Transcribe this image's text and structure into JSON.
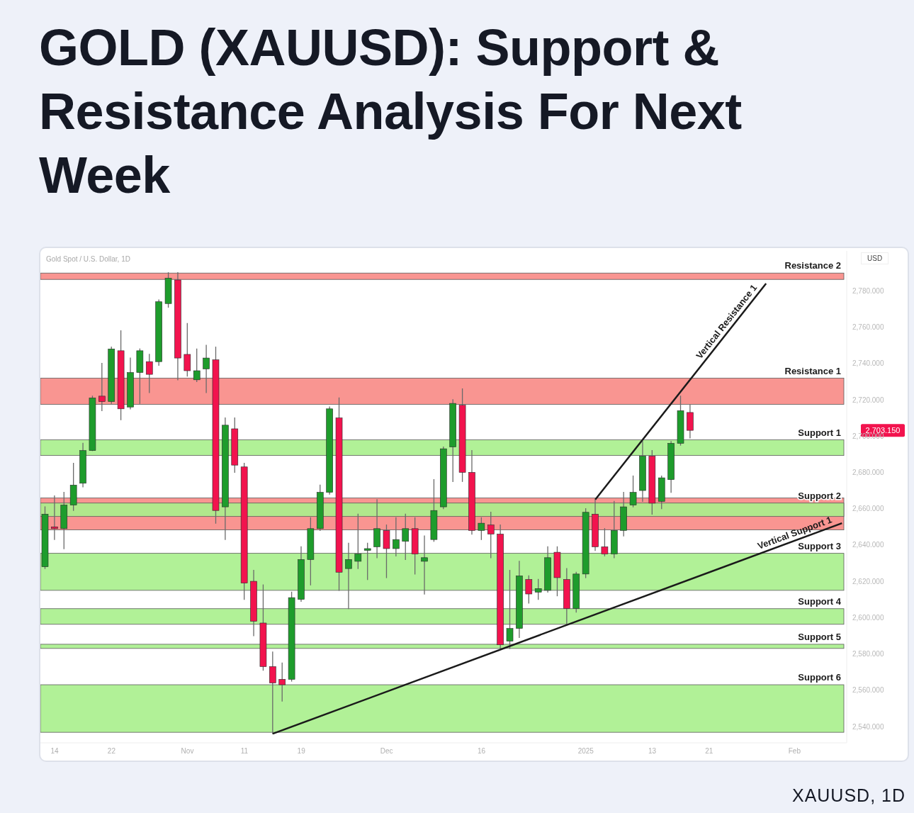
{
  "chart_data": {
    "type": "candlestick",
    "title": "GOLD (XAUUSD): Support & Resistance Analysis For Next Week",
    "subtitle": "Gold Spot / U.S. Dollar, 1D",
    "ylabel": "USD",
    "categories": [
      null,
      "14",
      null,
      null,
      null,
      null,
      null,
      "22",
      null,
      null,
      null,
      null,
      null,
      null,
      null,
      "Nov",
      null,
      null,
      null,
      null,
      null,
      "11",
      null,
      null,
      null,
      null,
      null,
      "19",
      null,
      null,
      null,
      null,
      null,
      null,
      null,
      null,
      "Dec",
      null,
      null,
      null,
      null,
      null,
      null,
      null,
      null,
      null,
      "16",
      null,
      null,
      null,
      null,
      null,
      null,
      null,
      null,
      null,
      null,
      "2025",
      null,
      null,
      null,
      null,
      null,
      null,
      "13",
      null,
      null,
      null,
      null,
      null,
      "21",
      null,
      null,
      null,
      null,
      null,
      null,
      null,
      null,
      "Feb",
      null,
      null,
      null,
      null,
      null
    ],
    "ohlc": [
      [
        2628,
        2661,
        2627,
        2657
      ],
      [
        2650,
        2667,
        2643,
        2649
      ],
      [
        2649,
        2669,
        2638,
        2662
      ],
      [
        2662,
        2685,
        2659,
        2673
      ],
      [
        2674,
        2696,
        2672,
        2692
      ],
      [
        2692,
        2722,
        2692,
        2721
      ],
      [
        2722,
        2740,
        2714,
        2719
      ],
      [
        2719,
        2749,
        2718,
        2748
      ],
      [
        2747,
        2758,
        2709,
        2715
      ],
      [
        2716,
        2743,
        2715,
        2735
      ],
      [
        2735,
        2748,
        2718,
        2747
      ],
      [
        2741,
        2745,
        2724,
        2734
      ],
      [
        2741,
        2775,
        2739,
        2774
      ],
      [
        2773,
        2790,
        2771,
        2787
      ],
      [
        2786,
        2790,
        2731,
        2743
      ],
      [
        2745,
        2762,
        2733,
        2736
      ],
      [
        2731,
        2748,
        2730,
        2736
      ],
      [
        2737,
        2750,
        2724,
        2743
      ],
      [
        2742,
        2749,
        2652,
        2659
      ],
      [
        2661,
        2710,
        2643,
        2706
      ],
      [
        2704,
        2710,
        2680,
        2684
      ],
      [
        2683,
        2685,
        2610,
        2619
      ],
      [
        2620,
        2626,
        2590,
        2598
      ],
      [
        2597,
        2618,
        2571,
        2573
      ],
      [
        2573,
        2581,
        2536,
        2564
      ],
      [
        2566,
        2575,
        2554,
        2563
      ],
      [
        2566,
        2614,
        2565,
        2611
      ],
      [
        2610,
        2639,
        2609,
        2632
      ],
      [
        2632,
        2655,
        2618,
        2649
      ],
      [
        2649,
        2673,
        2648,
        2669
      ],
      [
        2669,
        2716,
        2668,
        2715
      ],
      [
        2710,
        2721,
        2615,
        2625
      ],
      [
        2627,
        2641,
        2605,
        2632
      ],
      [
        2631,
        2657,
        2627,
        2635
      ],
      [
        2637,
        2641,
        2621,
        2638
      ],
      [
        2639,
        2665,
        2633,
        2649
      ],
      [
        2648,
        2651,
        2622,
        2638
      ],
      [
        2638,
        2655,
        2634,
        2643
      ],
      [
        2642,
        2657,
        2632,
        2649
      ],
      [
        2649,
        2655,
        2624,
        2635
      ],
      [
        2631,
        2645,
        2613,
        2633
      ],
      [
        2643,
        2676,
        2642,
        2659
      ],
      [
        2661,
        2694,
        2660,
        2693
      ],
      [
        2694,
        2720,
        2675,
        2718
      ],
      [
        2717,
        2726,
        2675,
        2680
      ],
      [
        2680,
        2692,
        2646,
        2648
      ],
      [
        2648,
        2655,
        2643,
        2652
      ],
      [
        2651,
        2658,
        2633,
        2646
      ],
      [
        2646,
        2651,
        2583,
        2585
      ],
      [
        2587,
        2626,
        2583,
        2594
      ],
      [
        2594,
        2631,
        2589,
        2623
      ],
      [
        2621,
        2623,
        2608,
        2613
      ],
      [
        2614,
        2621,
        2610,
        2616
      ],
      [
        2615,
        2639,
        2614,
        2633
      ],
      [
        2636,
        2639,
        2612,
        2622
      ],
      [
        2621,
        2627,
        2596,
        2605
      ],
      [
        2605,
        2625,
        2603,
        2624
      ],
      [
        2624,
        2660,
        2622,
        2658
      ],
      [
        2657,
        2665,
        2637,
        2639
      ],
      [
        2639,
        2649,
        2634,
        2635
      ],
      [
        2635,
        2664,
        2633,
        2648
      ],
      [
        2648,
        2669,
        2645,
        2661
      ],
      [
        2662,
        2678,
        2661,
        2669
      ],
      [
        2670,
        2697,
        2664,
        2689
      ],
      [
        2689,
        2692,
        2657,
        2663
      ],
      [
        2664,
        2678,
        2660,
        2677
      ],
      [
        2676,
        2697,
        2669,
        2696
      ],
      [
        2696,
        2722,
        2695,
        2714
      ],
      [
        2713,
        2717,
        2699,
        2703.15
      ],
      null,
      null,
      null,
      null,
      null,
      null,
      null,
      null,
      null,
      null,
      null,
      null,
      null,
      null,
      null,
      null
    ],
    "colors": [
      "#1e9c2c",
      "#f2134e",
      "#1e9c2c",
      "#1e9c2c",
      "#1e9c2c",
      "#1e9c2c",
      "#f2134e",
      "#1e9c2c",
      "#f2134e",
      "#1e9c2c",
      "#1e9c2c",
      "#f2134e",
      "#1e9c2c",
      "#1e9c2c",
      "#f2134e",
      "#f2134e",
      "#1e9c2c",
      "#1e9c2c",
      "#f2134e",
      "#1e9c2c",
      "#f2134e",
      "#f2134e",
      "#f2134e",
      "#f2134e",
      "#f2134e",
      "#f2134e",
      "#1e9c2c",
      "#1e9c2c",
      "#1e9c2c",
      "#1e9c2c",
      "#1e9c2c",
      "#f2134e",
      "#1e9c2c",
      "#1e9c2c",
      "#1e9c2c",
      "#1e9c2c",
      "#f2134e",
      "#1e9c2c",
      "#1e9c2c",
      "#f2134e",
      "#1e9c2c",
      "#1e9c2c",
      "#1e9c2c",
      "#1e9c2c",
      "#f2134e",
      "#f2134e",
      "#1e9c2c",
      "#f2134e",
      "#f2134e",
      "#1e9c2c",
      "#1e9c2c",
      "#f2134e",
      "#1e9c2c",
      "#1e9c2c",
      "#f2134e",
      "#f2134e",
      "#1e9c2c",
      "#1e9c2c",
      "#f2134e",
      "#f2134e",
      "#1e9c2c",
      "#1e9c2c",
      "#1e9c2c",
      "#1e9c2c",
      "#f2134e",
      "#1e9c2c",
      "#1e9c2c",
      "#1e9c2c",
      "#f2134e",
      null,
      null,
      null,
      null,
      null,
      null,
      null,
      null,
      null,
      null,
      null,
      null,
      null,
      null,
      null,
      null
    ],
    "series": [
      {
        "type": "line",
        "name": "Vertical Resistance 1",
        "color": "#1a1a1a",
        "values": [
          null,
          null,
          null,
          null,
          null,
          null,
          null,
          null,
          null,
          null,
          null,
          null,
          null,
          null,
          null,
          null,
          null,
          null,
          null,
          null,
          null,
          null,
          null,
          null,
          null,
          null,
          null,
          null,
          null,
          null,
          null,
          null,
          null,
          null,
          null,
          null,
          null,
          null,
          null,
          null,
          null,
          null,
          null,
          null,
          null,
          null,
          null,
          null,
          null,
          null,
          null,
          null,
          null,
          null,
          null,
          null,
          null,
          null,
          2665,
          null,
          null,
          null,
          null,
          null,
          null,
          null,
          null,
          null,
          null,
          null,
          null,
          null,
          null,
          null,
          null,
          null,
          2784,
          null,
          null,
          null,
          null,
          null,
          null,
          null,
          null
        ]
      },
      {
        "type": "line",
        "name": "Vertical Support 1",
        "color": "#1a1a1a",
        "values": [
          null,
          null,
          null,
          null,
          null,
          null,
          null,
          null,
          null,
          null,
          null,
          null,
          null,
          null,
          null,
          null,
          null,
          null,
          null,
          null,
          null,
          null,
          null,
          null,
          2536,
          null,
          null,
          null,
          null,
          null,
          null,
          null,
          null,
          null,
          null,
          null,
          null,
          null,
          null,
          null,
          null,
          null,
          null,
          null,
          null,
          null,
          null,
          null,
          null,
          null,
          null,
          null,
          null,
          null,
          null,
          null,
          null,
          null,
          null,
          null,
          null,
          null,
          null,
          null,
          null,
          null,
          null,
          null,
          null,
          null,
          null,
          null,
          null,
          null,
          null,
          null,
          null,
          null,
          null,
          null,
          null,
          null,
          null,
          null,
          2652
        ]
      }
    ],
    "ylim": [
      2531,
      2802
    ],
    "yticks": [
      {
        "value": 2540,
        "label": "2,540.000"
      },
      {
        "value": 2560,
        "label": "2,560.000"
      },
      {
        "value": 2580,
        "label": "2,580.000"
      },
      {
        "value": 2600,
        "label": "2,600.000"
      },
      {
        "value": 2620,
        "label": "2,620.000"
      },
      {
        "value": 2640,
        "label": "2,640.000"
      },
      {
        "value": 2660,
        "label": "2,660.000"
      },
      {
        "value": 2680,
        "label": "2,680.000"
      },
      {
        "value": 2700,
        "label": "2,700.000"
      },
      {
        "value": 2720,
        "label": "2,720.000"
      },
      {
        "value": 2740,
        "label": "2,740.000"
      },
      {
        "value": 2760,
        "label": "2,760.000"
      },
      {
        "value": 2780,
        "label": "2,780.000"
      }
    ],
    "bands": [
      {
        "axis": "y",
        "from": 2648.3,
        "to": 2665.9,
        "color": "#f88a85"
      },
      {
        "axis": "y",
        "from": 2786.3,
        "to": 2789.8,
        "label": "Resistance 2",
        "color": "#f88a85"
      },
      {
        "axis": "y",
        "from": 2717.5,
        "to": 2731.9,
        "label": "Resistance 1",
        "color": "#f88a85"
      },
      {
        "axis": "y",
        "from": 2689.3,
        "to": 2697.9,
        "label": "Support 1",
        "color": "#a8f08c"
      },
      {
        "axis": "y",
        "from": 2655.7,
        "to": 2663.1,
        "label": "Support 2",
        "color": "#a8f08c"
      },
      {
        "axis": "y",
        "from": 2615,
        "to": 2635.4,
        "label": "Support 3",
        "color": "#a8f08c"
      },
      {
        "axis": "y",
        "from": 2596.3,
        "to": 2604.9,
        "label": "Support 4",
        "color": "#a8f08c"
      },
      {
        "axis": "y",
        "from": 2583,
        "to": 2585.3,
        "label": "Support 5",
        "color": "#a8f08c"
      },
      {
        "axis": "y",
        "from": 2536.8,
        "to": 2563,
        "label": "Support 6",
        "color": "#a8f08c"
      }
    ],
    "annotations": [
      "XAUUSD, 1D",
      "2,703.150"
    ]
  }
}
